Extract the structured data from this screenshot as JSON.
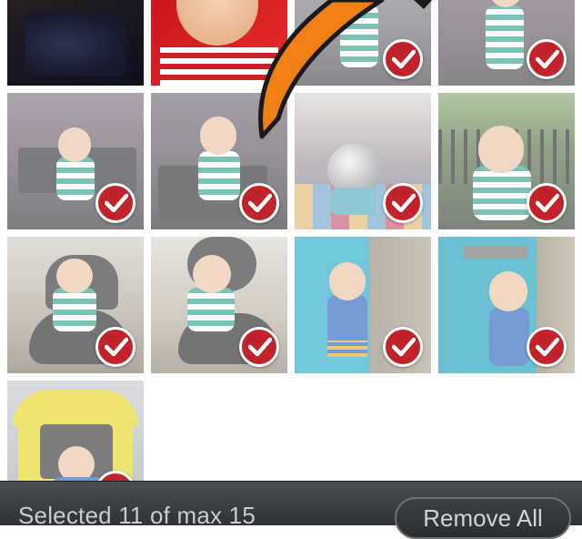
{
  "toolbar": {
    "selection_text": "Selected 11 of max 15",
    "remove_all_label": "Remove All"
  },
  "photos": [
    {
      "id": "photo-1",
      "selected": false
    },
    {
      "id": "photo-2",
      "selected": false
    },
    {
      "id": "photo-3",
      "selected": true
    },
    {
      "id": "photo-4",
      "selected": true
    },
    {
      "id": "photo-5",
      "selected": true
    },
    {
      "id": "photo-6",
      "selected": true
    },
    {
      "id": "photo-7",
      "selected": true
    },
    {
      "id": "photo-8",
      "selected": true
    },
    {
      "id": "photo-9",
      "selected": true
    },
    {
      "id": "photo-10",
      "selected": true
    },
    {
      "id": "photo-11",
      "selected": true
    },
    {
      "id": "photo-12",
      "selected": true
    },
    {
      "id": "photo-13",
      "selected": true
    }
  ],
  "colors": {
    "check_badge": "#c0242a",
    "toolbar": "#3a3d40",
    "arrow": "#f07f14"
  },
  "icons": {
    "check": "checkmark-icon",
    "pointer": "arrow-pointer-icon"
  }
}
